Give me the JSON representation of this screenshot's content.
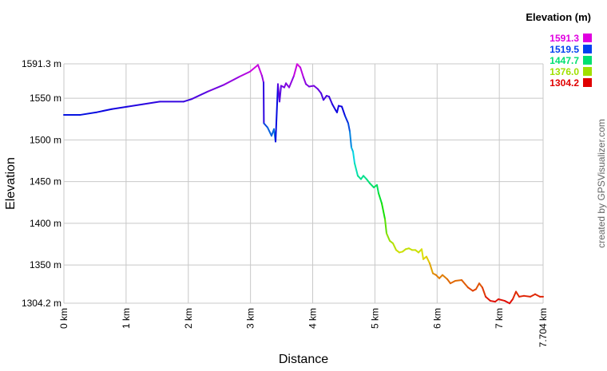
{
  "chart_data": {
    "type": "line",
    "xlabel": "Distance",
    "ylabel": "Elevation",
    "xlim": [
      0,
      7.704
    ],
    "ylim": [
      1304.2,
      1591.3
    ],
    "grid": true,
    "x_ticks": [
      {
        "value": 0,
        "label": "0 km"
      },
      {
        "value": 1,
        "label": "1 km"
      },
      {
        "value": 2,
        "label": "2 km"
      },
      {
        "value": 3,
        "label": "3 km"
      },
      {
        "value": 4,
        "label": "4 km"
      },
      {
        "value": 5,
        "label": "5 km"
      },
      {
        "value": 6,
        "label": "6 km"
      },
      {
        "value": 7,
        "label": "7 km"
      },
      {
        "value": 7.704,
        "label": "7.704 km"
      }
    ],
    "y_ticks": [
      {
        "value": 1591.3,
        "label": "1591.3 m"
      },
      {
        "value": 1550,
        "label": "1550 m"
      },
      {
        "value": 1500,
        "label": "1500 m"
      },
      {
        "value": 1450,
        "label": "1450 m"
      },
      {
        "value": 1400,
        "label": "1400 m"
      },
      {
        "value": 1350,
        "label": "1350 m"
      },
      {
        "value": 1304.2,
        "label": "1304.2 m"
      }
    ],
    "legend": {
      "title": "Elevation (m)",
      "placement": "top-right",
      "entries": [
        {
          "label": "1591.3",
          "color": "#e000e0"
        },
        {
          "label": "1519.5",
          "color": "#0040f0"
        },
        {
          "label": "1447.7",
          "color": "#00e070"
        },
        {
          "label": "1376.0",
          "color": "#a0e000"
        },
        {
          "label": "1304.2",
          "color": "#e00000"
        }
      ]
    },
    "color_by": "elevation",
    "credit": "created by GPSVisualizer.com",
    "points": [
      [
        0,
        1530
      ],
      [
        0.257,
        1530
      ],
      [
        0.514,
        1533
      ],
      [
        0.77,
        1537
      ],
      [
        1.027,
        1540
      ],
      [
        1.284,
        1543
      ],
      [
        1.541,
        1546
      ],
      [
        1.926,
        1546
      ],
      [
        2.054,
        1549
      ],
      [
        2.311,
        1558
      ],
      [
        2.568,
        1566
      ],
      [
        2.825,
        1576
      ],
      [
        2.992,
        1582
      ],
      [
        3.12,
        1590
      ],
      [
        3.184,
        1577
      ],
      [
        3.21,
        1569
      ],
      [
        3.215,
        1520
      ],
      [
        3.274,
        1515
      ],
      [
        3.338,
        1505
      ],
      [
        3.377,
        1513
      ],
      [
        3.403,
        1498
      ],
      [
        3.441,
        1567
      ],
      [
        3.467,
        1546
      ],
      [
        3.492,
        1565
      ],
      [
        3.544,
        1563
      ],
      [
        3.57,
        1568
      ],
      [
        3.621,
        1563
      ],
      [
        3.698,
        1577
      ],
      [
        3.749,
        1591
      ],
      [
        3.801,
        1587
      ],
      [
        3.852,
        1575
      ],
      [
        3.891,
        1567
      ],
      [
        3.942,
        1564
      ],
      [
        4.019,
        1565
      ],
      [
        4.083,
        1561
      ],
      [
        4.135,
        1556
      ],
      [
        4.173,
        1548
      ],
      [
        4.224,
        1553
      ],
      [
        4.263,
        1552
      ],
      [
        4.314,
        1543
      ],
      [
        4.366,
        1536
      ],
      [
        4.391,
        1533
      ],
      [
        4.417,
        1541
      ],
      [
        4.468,
        1540
      ],
      [
        4.519,
        1529
      ],
      [
        4.571,
        1520
      ],
      [
        4.597,
        1510
      ],
      [
        4.622,
        1491
      ],
      [
        4.648,
        1486
      ],
      [
        4.674,
        1472
      ],
      [
        4.725,
        1457
      ],
      [
        4.776,
        1453
      ],
      [
        4.815,
        1457
      ],
      [
        4.866,
        1453
      ],
      [
        4.918,
        1448
      ],
      [
        4.982,
        1443
      ],
      [
        5.033,
        1446
      ],
      [
        5.059,
        1436
      ],
      [
        5.11,
        1424
      ],
      [
        5.162,
        1405
      ],
      [
        5.187,
        1388
      ],
      [
        5.239,
        1379
      ],
      [
        5.29,
        1376
      ],
      [
        5.341,
        1368
      ],
      [
        5.393,
        1365
      ],
      [
        5.444,
        1366
      ],
      [
        5.495,
        1369
      ],
      [
        5.547,
        1370
      ],
      [
        5.598,
        1368
      ],
      [
        5.65,
        1368
      ],
      [
        5.701,
        1365
      ],
      [
        5.752,
        1369
      ],
      [
        5.778,
        1357
      ],
      [
        5.829,
        1360
      ],
      [
        5.881,
        1352
      ],
      [
        5.932,
        1340
      ],
      [
        5.983,
        1338
      ],
      [
        6.035,
        1334
      ],
      [
        6.086,
        1338
      ],
      [
        6.163,
        1333
      ],
      [
        6.214,
        1328
      ],
      [
        6.292,
        1331
      ],
      [
        6.394,
        1332
      ],
      [
        6.497,
        1323
      ],
      [
        6.574,
        1319
      ],
      [
        6.625,
        1321
      ],
      [
        6.677,
        1328
      ],
      [
        6.728,
        1323
      ],
      [
        6.78,
        1312
      ],
      [
        6.857,
        1307
      ],
      [
        6.934,
        1306
      ],
      [
        6.985,
        1309
      ],
      [
        7.088,
        1307
      ],
      [
        7.165,
        1304
      ],
      [
        7.216,
        1309
      ],
      [
        7.268,
        1318
      ],
      [
        7.319,
        1312
      ],
      [
        7.396,
        1313
      ],
      [
        7.499,
        1312
      ],
      [
        7.576,
        1315
      ],
      [
        7.653,
        1312
      ],
      [
        7.704,
        1312
      ]
    ]
  }
}
